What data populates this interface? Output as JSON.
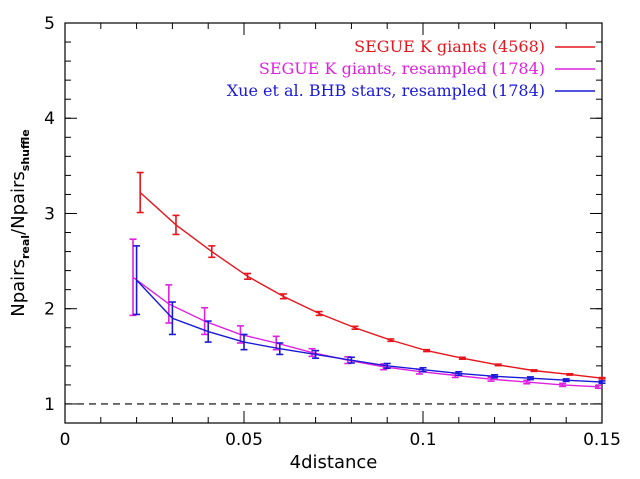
{
  "chart_data": {
    "type": "line",
    "title": "",
    "xlabel": "4distance",
    "ylabel_main": "Npairs",
    "ylabel_sub1": "real",
    "ylabel_slash": "/Npairs",
    "ylabel_sub2": "shuffle",
    "xlim": [
      0,
      0.15
    ],
    "ylim": [
      0.8,
      5
    ],
    "x_ticks": [
      0,
      0.05,
      0.1,
      0.15
    ],
    "x_tick_labels": [
      "0",
      "0.05",
      "0.1",
      "0.15"
    ],
    "y_ticks": [
      1,
      2,
      3,
      4,
      5
    ],
    "y_tick_labels": [
      "1",
      "2",
      "3",
      "4",
      "5"
    ],
    "grid": false,
    "legend_position": "top-right",
    "reference_line": {
      "y": 1,
      "style": "dashed",
      "color": "#000000"
    },
    "series": [
      {
        "name": "SEGUE K giants (4568)",
        "color": "#e8141b",
        "x": [
          0.021,
          0.031,
          0.041,
          0.051,
          0.061,
          0.071,
          0.081,
          0.091,
          0.101,
          0.111,
          0.121,
          0.131,
          0.141,
          0.151
        ],
        "y": [
          3.22,
          2.88,
          2.6,
          2.34,
          2.13,
          1.95,
          1.8,
          1.67,
          1.56,
          1.48,
          1.41,
          1.35,
          1.31,
          1.27
        ],
        "err": [
          0.21,
          0.1,
          0.06,
          0.03,
          0.025,
          0.02,
          0.015,
          0.012,
          0.01,
          0.01,
          0.008,
          0.008,
          0.007,
          0.007
        ]
      },
      {
        "name": "SEGUE K giants, resampled (1784)",
        "color": "#e020e0",
        "x": [
          0.019,
          0.029,
          0.039,
          0.049,
          0.059,
          0.069,
          0.079,
          0.089,
          0.099,
          0.109,
          0.119,
          0.129,
          0.139,
          0.149
        ],
        "y": [
          2.33,
          2.05,
          1.87,
          1.73,
          1.64,
          1.54,
          1.46,
          1.39,
          1.34,
          1.3,
          1.26,
          1.23,
          1.2,
          1.18
        ],
        "err": [
          0.4,
          0.2,
          0.14,
          0.09,
          0.07,
          0.04,
          0.035,
          0.03,
          0.025,
          0.022,
          0.02,
          0.018,
          0.016,
          0.015
        ]
      },
      {
        "name": "Xue et al. BHB stars, resampled (1784)",
        "color": "#1a1ad8",
        "x": [
          0.02,
          0.03,
          0.04,
          0.05,
          0.06,
          0.07,
          0.08,
          0.09,
          0.1,
          0.11,
          0.12,
          0.13,
          0.14,
          0.15
        ],
        "y": [
          2.3,
          1.9,
          1.76,
          1.65,
          1.58,
          1.52,
          1.46,
          1.4,
          1.36,
          1.32,
          1.29,
          1.27,
          1.25,
          1.23
        ],
        "err": [
          0.36,
          0.17,
          0.11,
          0.08,
          0.06,
          0.04,
          0.03,
          0.025,
          0.02,
          0.018,
          0.016,
          0.014,
          0.013,
          0.012
        ]
      }
    ]
  }
}
